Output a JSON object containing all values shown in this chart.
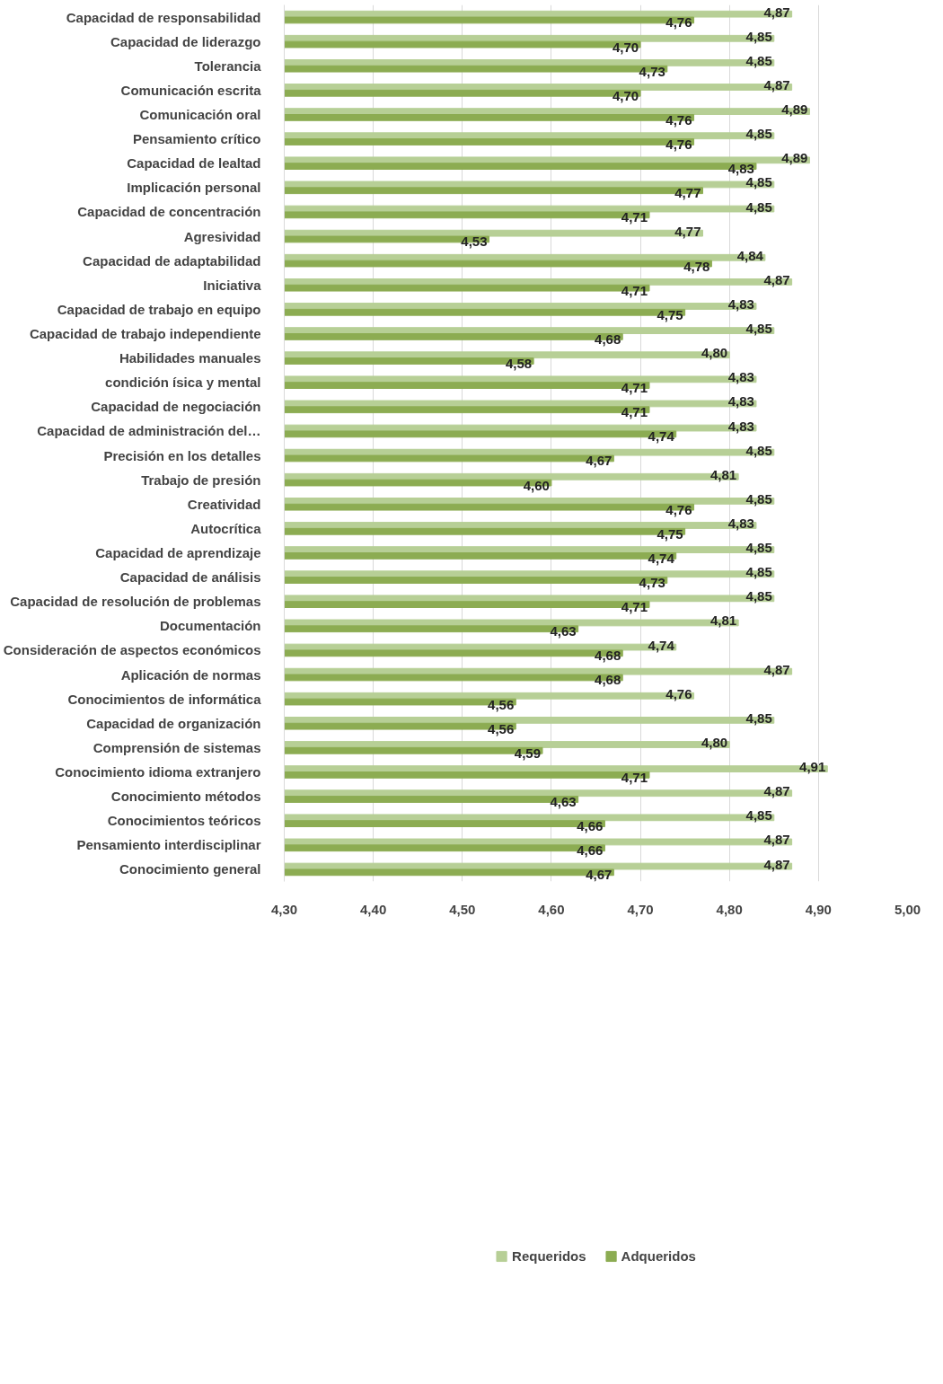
{
  "chart_data": {
    "type": "bar",
    "orientation": "horizontal",
    "categories": [
      "Capacidad de responsabilidad",
      "Capacidad de liderazgo",
      "Tolerancia",
      "Comunicación escrita",
      "Comunicación oral",
      "Pensamiento crítico",
      "Capacidad de lealtad",
      "Implicación personal",
      "Capacidad de concentración",
      "Agresividad",
      "Capacidad de adaptabilidad",
      "Iniciativa",
      "Capacidad de trabajo en equipo",
      "Capacidad de trabajo independiente",
      "Habilidades manuales",
      "condición ísica y mental",
      "Capacidad de negociación",
      "Capacidad de administración del…",
      "Precisión en los detalles",
      "Trabajo de presión",
      "Creatividad",
      "Autocrítica",
      "Capacidad de aprendizaje",
      "Capacidad de análisis",
      "Capacidad de resolución de problemas",
      "Documentación",
      "Consideración de aspectos económicos",
      "Aplicación de normas",
      "Conocimientos de informática",
      "Capacidad de organización",
      "Comprensión de sistemas",
      "Conocimiento idioma extranjero",
      "Conocimiento métodos",
      "Conocimientos teóricos",
      "Pensamiento interdisciplinar",
      "Conocimiento general"
    ],
    "series": [
      {
        "name": "Requeridos",
        "color": "#b7cf96",
        "values": [
          4.87,
          4.85,
          4.85,
          4.87,
          4.89,
          4.85,
          4.89,
          4.85,
          4.85,
          4.77,
          4.84,
          4.87,
          4.83,
          4.85,
          4.8,
          4.83,
          4.83,
          4.83,
          4.85,
          4.81,
          4.85,
          4.83,
          4.85,
          4.85,
          4.85,
          4.81,
          4.74,
          4.87,
          4.76,
          4.85,
          4.8,
          4.91,
          4.87,
          4.85,
          4.87,
          4.87
        ],
        "value_labels": [
          "4,87",
          "4,85",
          "4,85",
          "4,87",
          "4,89",
          "4,85",
          "4,89",
          "4,85",
          "4,85",
          "4,77",
          "4,84",
          "4,87",
          "4,83",
          "4,85",
          "4,80",
          "4,83",
          "4,83",
          "4,83",
          "4,85",
          "4,81",
          "4,85",
          "4,83",
          "4,85",
          "4,85",
          "4,85",
          "4,81",
          "4,74",
          "4,87",
          "4,76",
          "4,85",
          "4,80",
          "4,91",
          "4,87",
          "4,85",
          "4,87",
          "4,87"
        ]
      },
      {
        "name": "Adqueridos",
        "color": "#8cac52",
        "values": [
          4.76,
          4.7,
          4.73,
          4.7,
          4.76,
          4.76,
          4.83,
          4.77,
          4.71,
          4.53,
          4.78,
          4.71,
          4.75,
          4.68,
          4.58,
          4.71,
          4.71,
          4.74,
          4.67,
          4.6,
          4.76,
          4.75,
          4.74,
          4.73,
          4.71,
          4.63,
          4.68,
          4.68,
          4.56,
          4.56,
          4.59,
          4.71,
          4.63,
          4.66,
          4.66,
          4.67
        ],
        "value_labels": [
          "4,76",
          "4,70",
          "4,73",
          "4,70",
          "4,76",
          "4,76",
          "4,83",
          "4,77",
          "4,71",
          "4,53",
          "4,78",
          "4,71",
          "4,75",
          "4,68",
          "4,58",
          "4,71",
          "4,71",
          "4,74",
          "4,67",
          "4,60",
          "4,76",
          "4,75",
          "4,74",
          "4,73",
          "4,71",
          "4,63",
          "4,68",
          "4,68",
          "4,56",
          "4,56",
          "4,59",
          "4,71",
          "4,63",
          "4,66",
          "4,66",
          "4,67"
        ]
      }
    ],
    "xlim": [
      4.3,
      5.0
    ],
    "xticks": [
      {
        "value": 4.3,
        "label": "4,30"
      },
      {
        "value": 4.4,
        "label": "4,40"
      },
      {
        "value": 4.5,
        "label": "4,50"
      },
      {
        "value": 4.6,
        "label": "4,60"
      },
      {
        "value": 4.7,
        "label": "4,70"
      },
      {
        "value": 4.8,
        "label": "4,80"
      },
      {
        "value": 4.9,
        "label": "4,90"
      },
      {
        "value": 5.0,
        "label": "5,00"
      }
    ],
    "grid": "x",
    "legend": "bottom"
  }
}
